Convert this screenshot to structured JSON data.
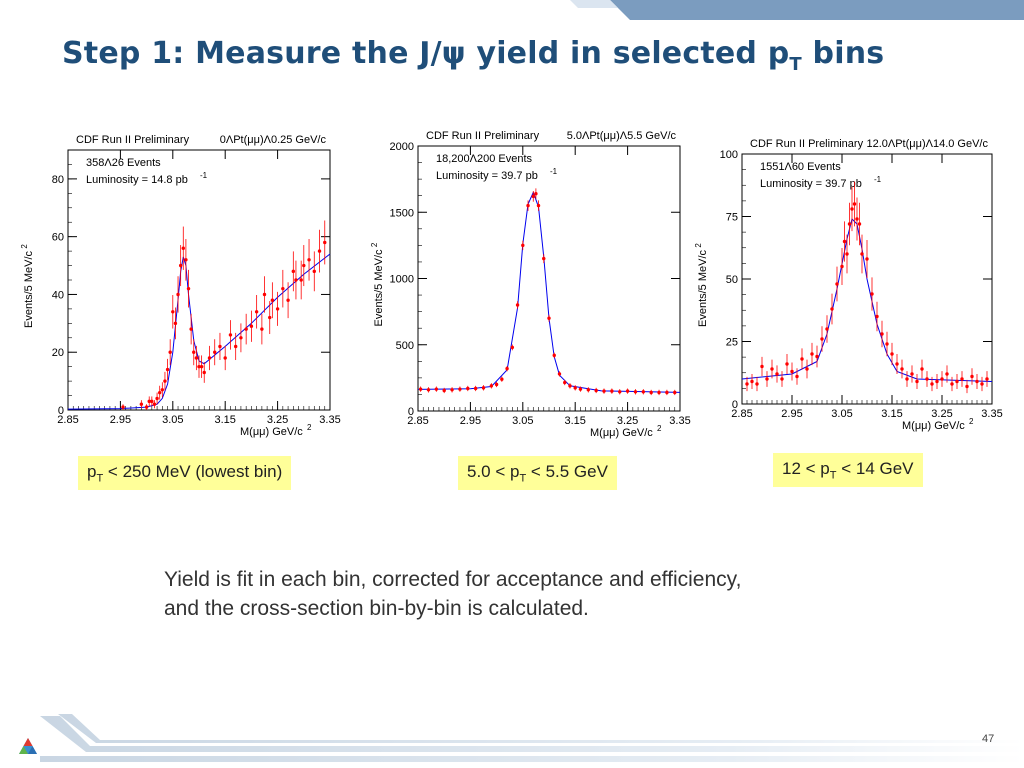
{
  "slide": {
    "title_main": "Step 1: Measure the J/ψ yield in selected p",
    "title_sub": "T",
    "title_end": " bins",
    "body_line1": "Yield is fit in each bin, corrected for acceptance and efficiency,",
    "body_line2": "and the cross-section bin-by-bin is calculated.",
    "page_number": "47",
    "colors": {
      "title": "#1f4e79",
      "caption_bg": "#ffff99",
      "data_points": "#ff0000",
      "fit_curve": "#0000ee"
    }
  },
  "captions": [
    {
      "pre": "p",
      "sub": "T",
      "post": " < 250 MeV (lowest bin)"
    },
    {
      "pre": "5.0 < p",
      "sub": "T",
      "post": " < 5.5 GeV"
    },
    {
      "pre": "12 < p",
      "sub": "T",
      "post": " < 14 GeV"
    }
  ],
  "chart_data": [
    {
      "type": "scatter",
      "header_left": "CDF Run II Preliminary",
      "header_right": "0ΛPt(μμ)Λ0.25 GeV/c",
      "events": "358Λ26 Events",
      "lumi": "Luminosity = 14.8 pb",
      "lumi_exp": "-1",
      "xlabel": "M(μμ) GeV/c",
      "xlabel_exp": "2",
      "ylabel": "Events/5 MeV/c",
      "ylabel_exp": "2",
      "xlim": [
        2.85,
        3.35
      ],
      "ylim": [
        0,
        90
      ],
      "xticks": [
        2.85,
        2.95,
        3.05,
        3.15,
        3.25,
        3.35
      ],
      "xtick_labels": [
        "2.85",
        "2.95",
        "3.05",
        "3.15",
        "3.25",
        "3.35"
      ],
      "yticks": [
        0,
        20,
        40,
        60,
        80
      ],
      "ytick_labels": [
        "0",
        "20",
        "40",
        "60",
        "80"
      ],
      "series": [
        {
          "points": [
            [
              2.955,
              1
            ],
            [
              2.99,
              2
            ],
            [
              3.0,
              1
            ],
            [
              3.005,
              3
            ],
            [
              3.01,
              3
            ],
            [
              3.015,
              2
            ],
            [
              3.02,
              4
            ],
            [
              3.025,
              6
            ],
            [
              3.03,
              7
            ],
            [
              3.035,
              10
            ],
            [
              3.04,
              14
            ],
            [
              3.045,
              20
            ],
            [
              3.05,
              34
            ],
            [
              3.055,
              30
            ],
            [
              3.06,
              40
            ],
            [
              3.065,
              50
            ],
            [
              3.07,
              56
            ],
            [
              3.075,
              52
            ],
            [
              3.08,
              42
            ],
            [
              3.085,
              28
            ],
            [
              3.09,
              20
            ],
            [
              3.095,
              18
            ],
            [
              3.1,
              15
            ],
            [
              3.105,
              15
            ],
            [
              3.11,
              13
            ],
            [
              3.12,
              18
            ],
            [
              3.13,
              20
            ],
            [
              3.14,
              22
            ],
            [
              3.15,
              18
            ],
            [
              3.16,
              26
            ],
            [
              3.17,
              22
            ],
            [
              3.18,
              25
            ],
            [
              3.19,
              28
            ],
            [
              3.2,
              29
            ],
            [
              3.21,
              34
            ],
            [
              3.22,
              28
            ],
            [
              3.225,
              40
            ],
            [
              3.235,
              32
            ],
            [
              3.24,
              38
            ],
            [
              3.25,
              35
            ],
            [
              3.26,
              42
            ],
            [
              3.27,
              38
            ],
            [
              3.28,
              48
            ],
            [
              3.285,
              45
            ],
            [
              3.295,
              45
            ],
            [
              3.3,
              50
            ],
            [
              3.31,
              52
            ],
            [
              3.32,
              48
            ],
            [
              3.33,
              55
            ],
            [
              3.34,
              58
            ]
          ],
          "errors": [
            1,
            1.4,
            1,
            1.7,
            1.7,
            1.4,
            2,
            2.4,
            2.6,
            3.2,
            3.7,
            4.5,
            5.8,
            5.5,
            6.3,
            7.1,
            7.5,
            7.2,
            6.5,
            5.3,
            4.5,
            4.2,
            3.9,
            3.9,
            3.6,
            4.2,
            4.5,
            4.7,
            4.2,
            5.1,
            4.7,
            5,
            5.3,
            5.4,
            5.8,
            5.3,
            6.3,
            5.7,
            6.2,
            5.9,
            6.5,
            6.2,
            6.9,
            6.7,
            6.7,
            7.1,
            7.2,
            6.9,
            7.4,
            7.6
          ],
          "fit": [
            [
              2.85,
              0.3
            ],
            [
              2.95,
              0.5
            ],
            [
              3.0,
              1
            ],
            [
              3.02,
              2
            ],
            [
              3.03,
              4
            ],
            [
              3.04,
              9
            ],
            [
              3.05,
              20
            ],
            [
              3.06,
              38
            ],
            [
              3.065,
              48
            ],
            [
              3.07,
              53
            ],
            [
              3.075,
              50
            ],
            [
              3.08,
              40
            ],
            [
              3.09,
              24
            ],
            [
              3.1,
              17
            ],
            [
              3.11,
              16
            ],
            [
              3.15,
              22
            ],
            [
              3.2,
              30
            ],
            [
              3.25,
              39
            ],
            [
              3.3,
              47
            ],
            [
              3.35,
              54
            ]
          ]
        }
      ]
    },
    {
      "type": "scatter",
      "header_left": "CDF Run II Preliminary",
      "header_right": "5.0ΛPt(μμ)Λ5.5 GeV/c",
      "events": "18,200Λ200 Events",
      "lumi": "Luminosity = 39.7 pb",
      "lumi_exp": "-1",
      "xlabel": "M(μμ) GeV/c",
      "xlabel_exp": "2",
      "ylabel": "Events/5 MeV/c",
      "ylabel_exp": "2",
      "xlim": [
        2.85,
        3.35
      ],
      "ylim": [
        0,
        2000
      ],
      "xticks": [
        2.85,
        2.95,
        3.05,
        3.15,
        3.25,
        3.35
      ],
      "xtick_labels": [
        "2.85",
        "2.95",
        "3.05",
        "3.15",
        "3.25",
        "3.35"
      ],
      "yticks": [
        0,
        500,
        1000,
        1500,
        2000
      ],
      "ytick_labels": [
        "0",
        "500",
        "1000",
        "1500",
        "2000"
      ],
      "series": [
        {
          "points": [
            [
              2.855,
              165
            ],
            [
              2.87,
              160
            ],
            [
              2.885,
              165
            ],
            [
              2.9,
              155
            ],
            [
              2.915,
              160
            ],
            [
              2.93,
              165
            ],
            [
              2.945,
              170
            ],
            [
              2.96,
              170
            ],
            [
              2.975,
              175
            ],
            [
              2.99,
              190
            ],
            [
              3.0,
              200
            ],
            [
              3.01,
              240
            ],
            [
              3.02,
              320
            ],
            [
              3.03,
              480
            ],
            [
              3.04,
              800
            ],
            [
              3.05,
              1250
            ],
            [
              3.06,
              1550
            ],
            [
              3.07,
              1620
            ],
            [
              3.075,
              1640
            ],
            [
              3.08,
              1550
            ],
            [
              3.09,
              1150
            ],
            [
              3.1,
              700
            ],
            [
              3.11,
              420
            ],
            [
              3.12,
              280
            ],
            [
              3.13,
              215
            ],
            [
              3.14,
              190
            ],
            [
              3.15,
              175
            ],
            [
              3.16,
              165
            ],
            [
              3.175,
              160
            ],
            [
              3.19,
              155
            ],
            [
              3.205,
              150
            ],
            [
              3.22,
              150
            ],
            [
              3.235,
              145
            ],
            [
              3.25,
              150
            ],
            [
              3.265,
              145
            ],
            [
              3.28,
              145
            ],
            [
              3.295,
              140
            ],
            [
              3.31,
              140
            ],
            [
              3.325,
              140
            ],
            [
              3.34,
              140
            ]
          ],
          "fit": [
            [
              2.85,
              163
            ],
            [
              2.95,
              168
            ],
            [
              2.99,
              185
            ],
            [
              3.02,
              310
            ],
            [
              3.04,
              780
            ],
            [
              3.05,
              1260
            ],
            [
              3.06,
              1560
            ],
            [
              3.07,
              1650
            ],
            [
              3.08,
              1540
            ],
            [
              3.09,
              1160
            ],
            [
              3.1,
              700
            ],
            [
              3.11,
              410
            ],
            [
              3.12,
              270
            ],
            [
              3.14,
              190
            ],
            [
              3.2,
              152
            ],
            [
              3.35,
              140
            ]
          ]
        }
      ]
    },
    {
      "type": "scatter",
      "header_left": "CDF Run II Preliminary",
      "header_right": "12.0ΛPt(μμ)Λ14.0 GeV/c",
      "events": "1551Λ60 Events",
      "lumi": "Luminosity = 39.7 pb",
      "lumi_exp": "-1",
      "xlabel": "M(μμ) GeV/c",
      "xlabel_exp": "2",
      "ylabel": "Events/5 MeV/c",
      "ylabel_exp": "2",
      "xlim": [
        2.85,
        3.35
      ],
      "ylim": [
        0,
        100
      ],
      "xticks": [
        2.85,
        2.95,
        3.05,
        3.15,
        3.25,
        3.35
      ],
      "xtick_labels": [
        "2.85",
        "2.95",
        "3.05",
        "3.15",
        "3.25",
        "3.35"
      ],
      "yticks": [
        0,
        25,
        50,
        75,
        100
      ],
      "ytick_labels": [
        "0",
        "25",
        "50",
        "75",
        "100"
      ],
      "series": [
        {
          "points": [
            [
              2.86,
              8
            ],
            [
              2.87,
              9
            ],
            [
              2.88,
              8
            ],
            [
              2.89,
              15
            ],
            [
              2.9,
              10
            ],
            [
              2.91,
              14
            ],
            [
              2.92,
              12
            ],
            [
              2.93,
              10
            ],
            [
              2.94,
              16
            ],
            [
              2.95,
              13
            ],
            [
              2.96,
              11
            ],
            [
              2.97,
              18
            ],
            [
              2.98,
              14
            ],
            [
              2.99,
              20
            ],
            [
              3.0,
              19
            ],
            [
              3.01,
              26
            ],
            [
              3.02,
              30
            ],
            [
              3.03,
              38
            ],
            [
              3.04,
              48
            ],
            [
              3.05,
              55
            ],
            [
              3.055,
              65
            ],
            [
              3.06,
              60
            ],
            [
              3.065,
              72
            ],
            [
              3.07,
              78
            ],
            [
              3.075,
              80
            ],
            [
              3.08,
              74
            ],
            [
              3.085,
              72
            ],
            [
              3.09,
              60
            ],
            [
              3.1,
              58
            ],
            [
              3.11,
              44
            ],
            [
              3.12,
              35
            ],
            [
              3.13,
              28
            ],
            [
              3.14,
              24
            ],
            [
              3.15,
              20
            ],
            [
              3.16,
              16
            ],
            [
              3.17,
              14
            ],
            [
              3.18,
              10
            ],
            [
              3.19,
              12
            ],
            [
              3.2,
              9
            ],
            [
              3.21,
              14
            ],
            [
              3.22,
              10
            ],
            [
              3.23,
              8
            ],
            [
              3.24,
              9
            ],
            [
              3.25,
              10
            ],
            [
              3.26,
              12
            ],
            [
              3.27,
              8
            ],
            [
              3.28,
              9
            ],
            [
              3.29,
              10
            ],
            [
              3.3,
              7
            ],
            [
              3.31,
              11
            ],
            [
              3.32,
              9
            ],
            [
              3.33,
              8
            ],
            [
              3.34,
              10
            ]
          ],
          "fit": [
            [
              2.85,
              10
            ],
            [
              2.95,
              12
            ],
            [
              3.0,
              17
            ],
            [
              3.02,
              28
            ],
            [
              3.04,
              46
            ],
            [
              3.06,
              66
            ],
            [
              3.07,
              74
            ],
            [
              3.08,
              72
            ],
            [
              3.09,
              62
            ],
            [
              3.1,
              50
            ],
            [
              3.12,
              32
            ],
            [
              3.14,
              20
            ],
            [
              3.16,
              13
            ],
            [
              3.2,
              10
            ],
            [
              3.35,
              9
            ]
          ]
        }
      ]
    }
  ]
}
